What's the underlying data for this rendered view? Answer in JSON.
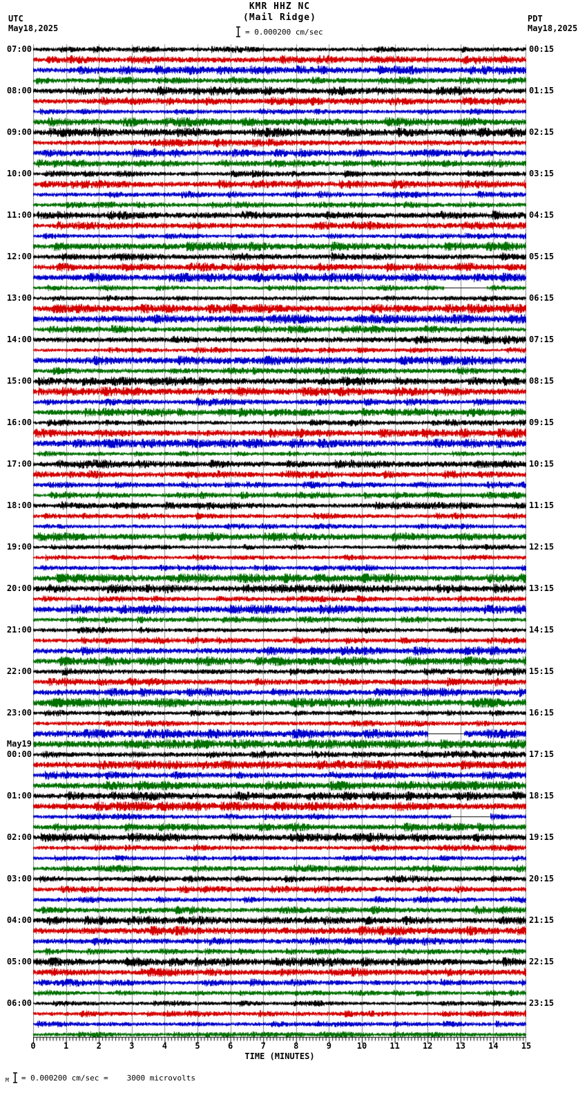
{
  "header": {
    "station_title": "KMR HHZ NC",
    "station_subtitle": "(Mail Ridge)",
    "scale_label": "= 0.000200 cm/sec",
    "left_timezone": "UTC",
    "left_date": "May18,2025",
    "right_timezone": "PDT",
    "right_date": "May18,2025"
  },
  "footer": {
    "prefix": "M",
    "scale_equation": "= 0.000200 cm/sec =",
    "microvolts_value": "3000 microvolts"
  },
  "axis": {
    "title": "TIME (MINUTES)",
    "tick_labels": [
      "0",
      "1",
      "2",
      "3",
      "4",
      "5",
      "6",
      "7",
      "8",
      "9",
      "10",
      "11",
      "12",
      "13",
      "14",
      "15"
    ],
    "minutes_per_row": 15,
    "minor_ticks_per_minute": 10
  },
  "left_labels": [
    {
      "hour_index": 0,
      "text": "07:00"
    },
    {
      "hour_index": 1,
      "text": "08:00"
    },
    {
      "hour_index": 2,
      "text": "09:00"
    },
    {
      "hour_index": 3,
      "text": "10:00"
    },
    {
      "hour_index": 4,
      "text": "11:00"
    },
    {
      "hour_index": 5,
      "text": "12:00"
    },
    {
      "hour_index": 6,
      "text": "13:00"
    },
    {
      "hour_index": 7,
      "text": "14:00"
    },
    {
      "hour_index": 8,
      "text": "15:00"
    },
    {
      "hour_index": 9,
      "text": "16:00"
    },
    {
      "hour_index": 10,
      "text": "17:00"
    },
    {
      "hour_index": 11,
      "text": "18:00"
    },
    {
      "hour_index": 12,
      "text": "19:00"
    },
    {
      "hour_index": 13,
      "text": "20:00"
    },
    {
      "hour_index": 14,
      "text": "21:00"
    },
    {
      "hour_index": 15,
      "text": "22:00"
    },
    {
      "hour_index": 16,
      "text": "23:00"
    },
    {
      "hour_index": 17,
      "text": "00:00",
      "day_label": "May19"
    },
    {
      "hour_index": 18,
      "text": "01:00"
    },
    {
      "hour_index": 19,
      "text": "02:00"
    },
    {
      "hour_index": 20,
      "text": "03:00"
    },
    {
      "hour_index": 21,
      "text": "04:00"
    },
    {
      "hour_index": 22,
      "text": "05:00"
    },
    {
      "hour_index": 23,
      "text": "06:00"
    }
  ],
  "right_labels": [
    "00:15",
    "01:15",
    "02:15",
    "03:15",
    "04:15",
    "05:15",
    "06:15",
    "07:15",
    "08:15",
    "09:15",
    "10:15",
    "11:15",
    "12:15",
    "13:15",
    "14:15",
    "15:15",
    "16:15",
    "17:15",
    "18:15",
    "19:15",
    "20:15",
    "21:15",
    "22:15",
    "23:15"
  ],
  "chart_data": {
    "type": "line",
    "subtype": "helicorder-seismogram",
    "station": "KMR",
    "channel": "HHZ",
    "network": "NC",
    "site_name": "Mail Ridge",
    "start_time_utc": "May18,2025 07:00",
    "end_time_utc": "May19,2025 07:00",
    "rows": 96,
    "row_duration_minutes": 15,
    "x_range_minutes": [
      0,
      15
    ],
    "amplitude_scale": "0.000200 cm/sec = 3000 microvolts",
    "color_cycle": [
      "black",
      "red",
      "blue",
      "green"
    ],
    "signal_character": "continuous broadband microseismic noise, no large discrete events",
    "gaps": [
      {
        "row_index": 23,
        "row_start_utc": "12:45",
        "trace_color": "green",
        "start_minute": 12.5,
        "end_minute": 13.8
      },
      {
        "row_index": 66,
        "row_start_utc": "23:30",
        "trace_color": "blue",
        "start_minute": 12.0,
        "end_minute": 13.1
      },
      {
        "row_index": 74,
        "row_start_utc": "01:30",
        "trace_color": "blue",
        "start_minute": 12.7,
        "end_minute": 13.9
      }
    ]
  },
  "colors": {
    "black": "#000000",
    "red": "#d40000",
    "blue": "#0000cc",
    "green": "#007000",
    "grid": "#8a8a8a",
    "axis": "#000000",
    "gap_line": "#000000"
  }
}
